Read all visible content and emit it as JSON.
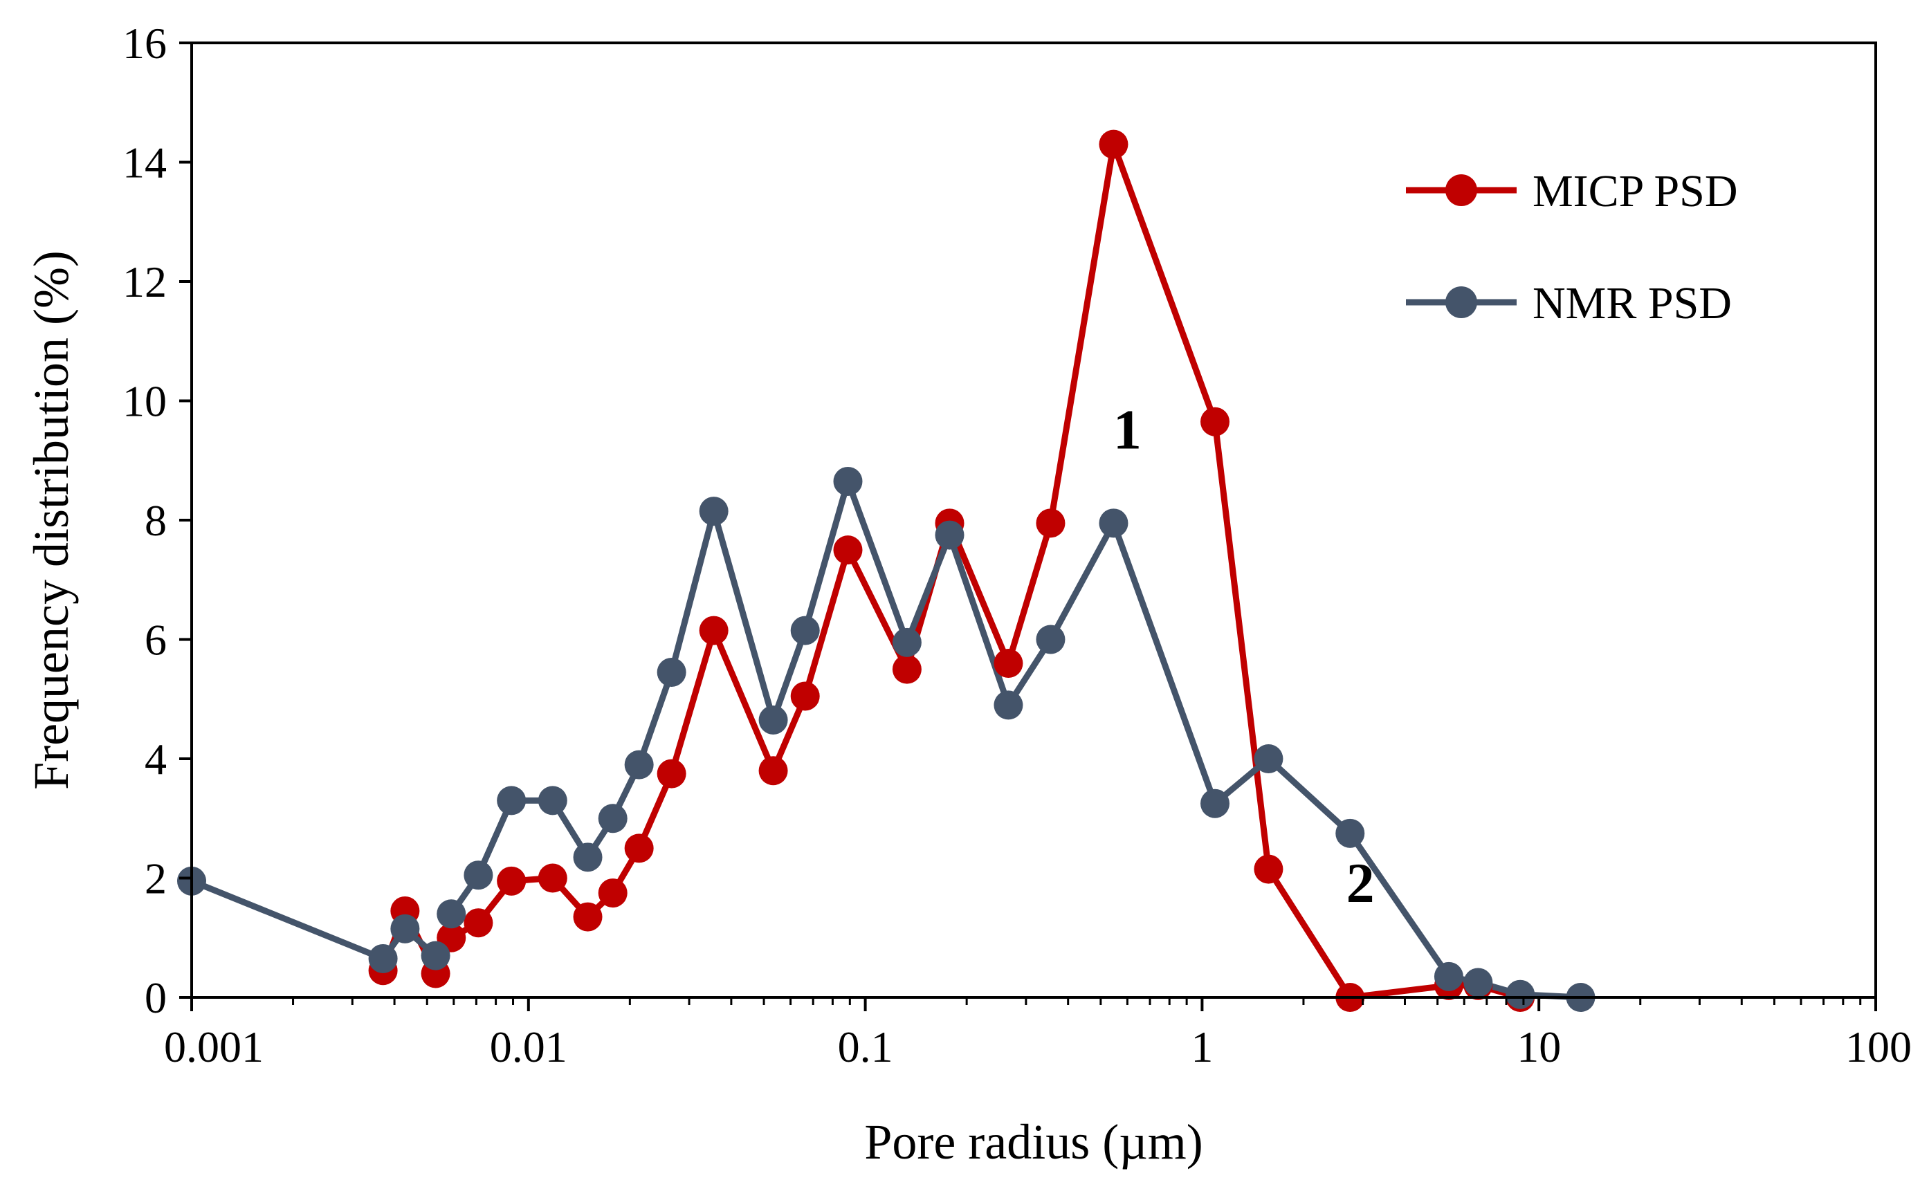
{
  "chart_data": {
    "type": "line",
    "title": "",
    "xlabel": "Pore radius (µm)",
    "ylabel": "Frequency distribution (%)",
    "xscale": "log",
    "xlim": [
      0.001,
      100
    ],
    "ylim": [
      0,
      16
    ],
    "x_ticks": [
      0.001,
      0.01,
      0.1,
      1,
      10,
      100
    ],
    "x_tick_labels": [
      "0.001",
      "0.01",
      "0.1",
      "1",
      "10",
      "100"
    ],
    "y_ticks": [
      0,
      2,
      4,
      6,
      8,
      10,
      12,
      14,
      16
    ],
    "y_tick_labels": [
      "0",
      "2",
      "4",
      "6",
      "8",
      "10",
      "12",
      "14",
      "16"
    ],
    "grid": false,
    "legend_position": "top-right",
    "series": [
      {
        "name": "MICP PSD",
        "color": "#c00000",
        "x": [
          0.0037,
          0.0043,
          0.0053,
          0.0059,
          0.0071,
          0.0089,
          0.0118,
          0.015,
          0.0178,
          0.0213,
          0.0266,
          0.0355,
          0.0533,
          0.0663,
          0.0888,
          0.133,
          0.178,
          0.266,
          0.355,
          0.546,
          1.092,
          1.575,
          2.75,
          5.4,
          6.6,
          8.8
        ],
        "y": [
          0.45,
          1.45,
          0.4,
          1.0,
          1.25,
          1.95,
          2.0,
          1.35,
          1.75,
          2.5,
          3.75,
          6.15,
          3.8,
          5.05,
          7.5,
          5.5,
          7.95,
          5.6,
          7.95,
          14.3,
          9.65,
          2.15,
          0.0,
          0.2,
          0.2,
          0.0
        ]
      },
      {
        "name": "NMR PSD",
        "color": "#44546a",
        "x": [
          0.001,
          0.0037,
          0.0043,
          0.0053,
          0.0059,
          0.0071,
          0.0089,
          0.0118,
          0.015,
          0.0178,
          0.0213,
          0.0266,
          0.0355,
          0.0533,
          0.0663,
          0.0888,
          0.133,
          0.178,
          0.266,
          0.355,
          0.546,
          1.092,
          1.575,
          2.75,
          5.4,
          6.6,
          8.8,
          13.3
        ],
        "y": [
          1.95,
          0.65,
          1.15,
          0.7,
          1.4,
          2.05,
          3.3,
          3.3,
          2.35,
          3.0,
          3.9,
          5.45,
          8.15,
          4.65,
          6.15,
          8.65,
          5.95,
          7.75,
          4.9,
          6.0,
          7.95,
          3.25,
          4.0,
          2.75,
          0.35,
          0.25,
          0.05,
          0.0
        ]
      }
    ],
    "annotations": [
      {
        "text": "1",
        "x": 0.6,
        "y": 9.2
      },
      {
        "text": "2",
        "x": 2.95,
        "y": 1.6
      }
    ]
  }
}
